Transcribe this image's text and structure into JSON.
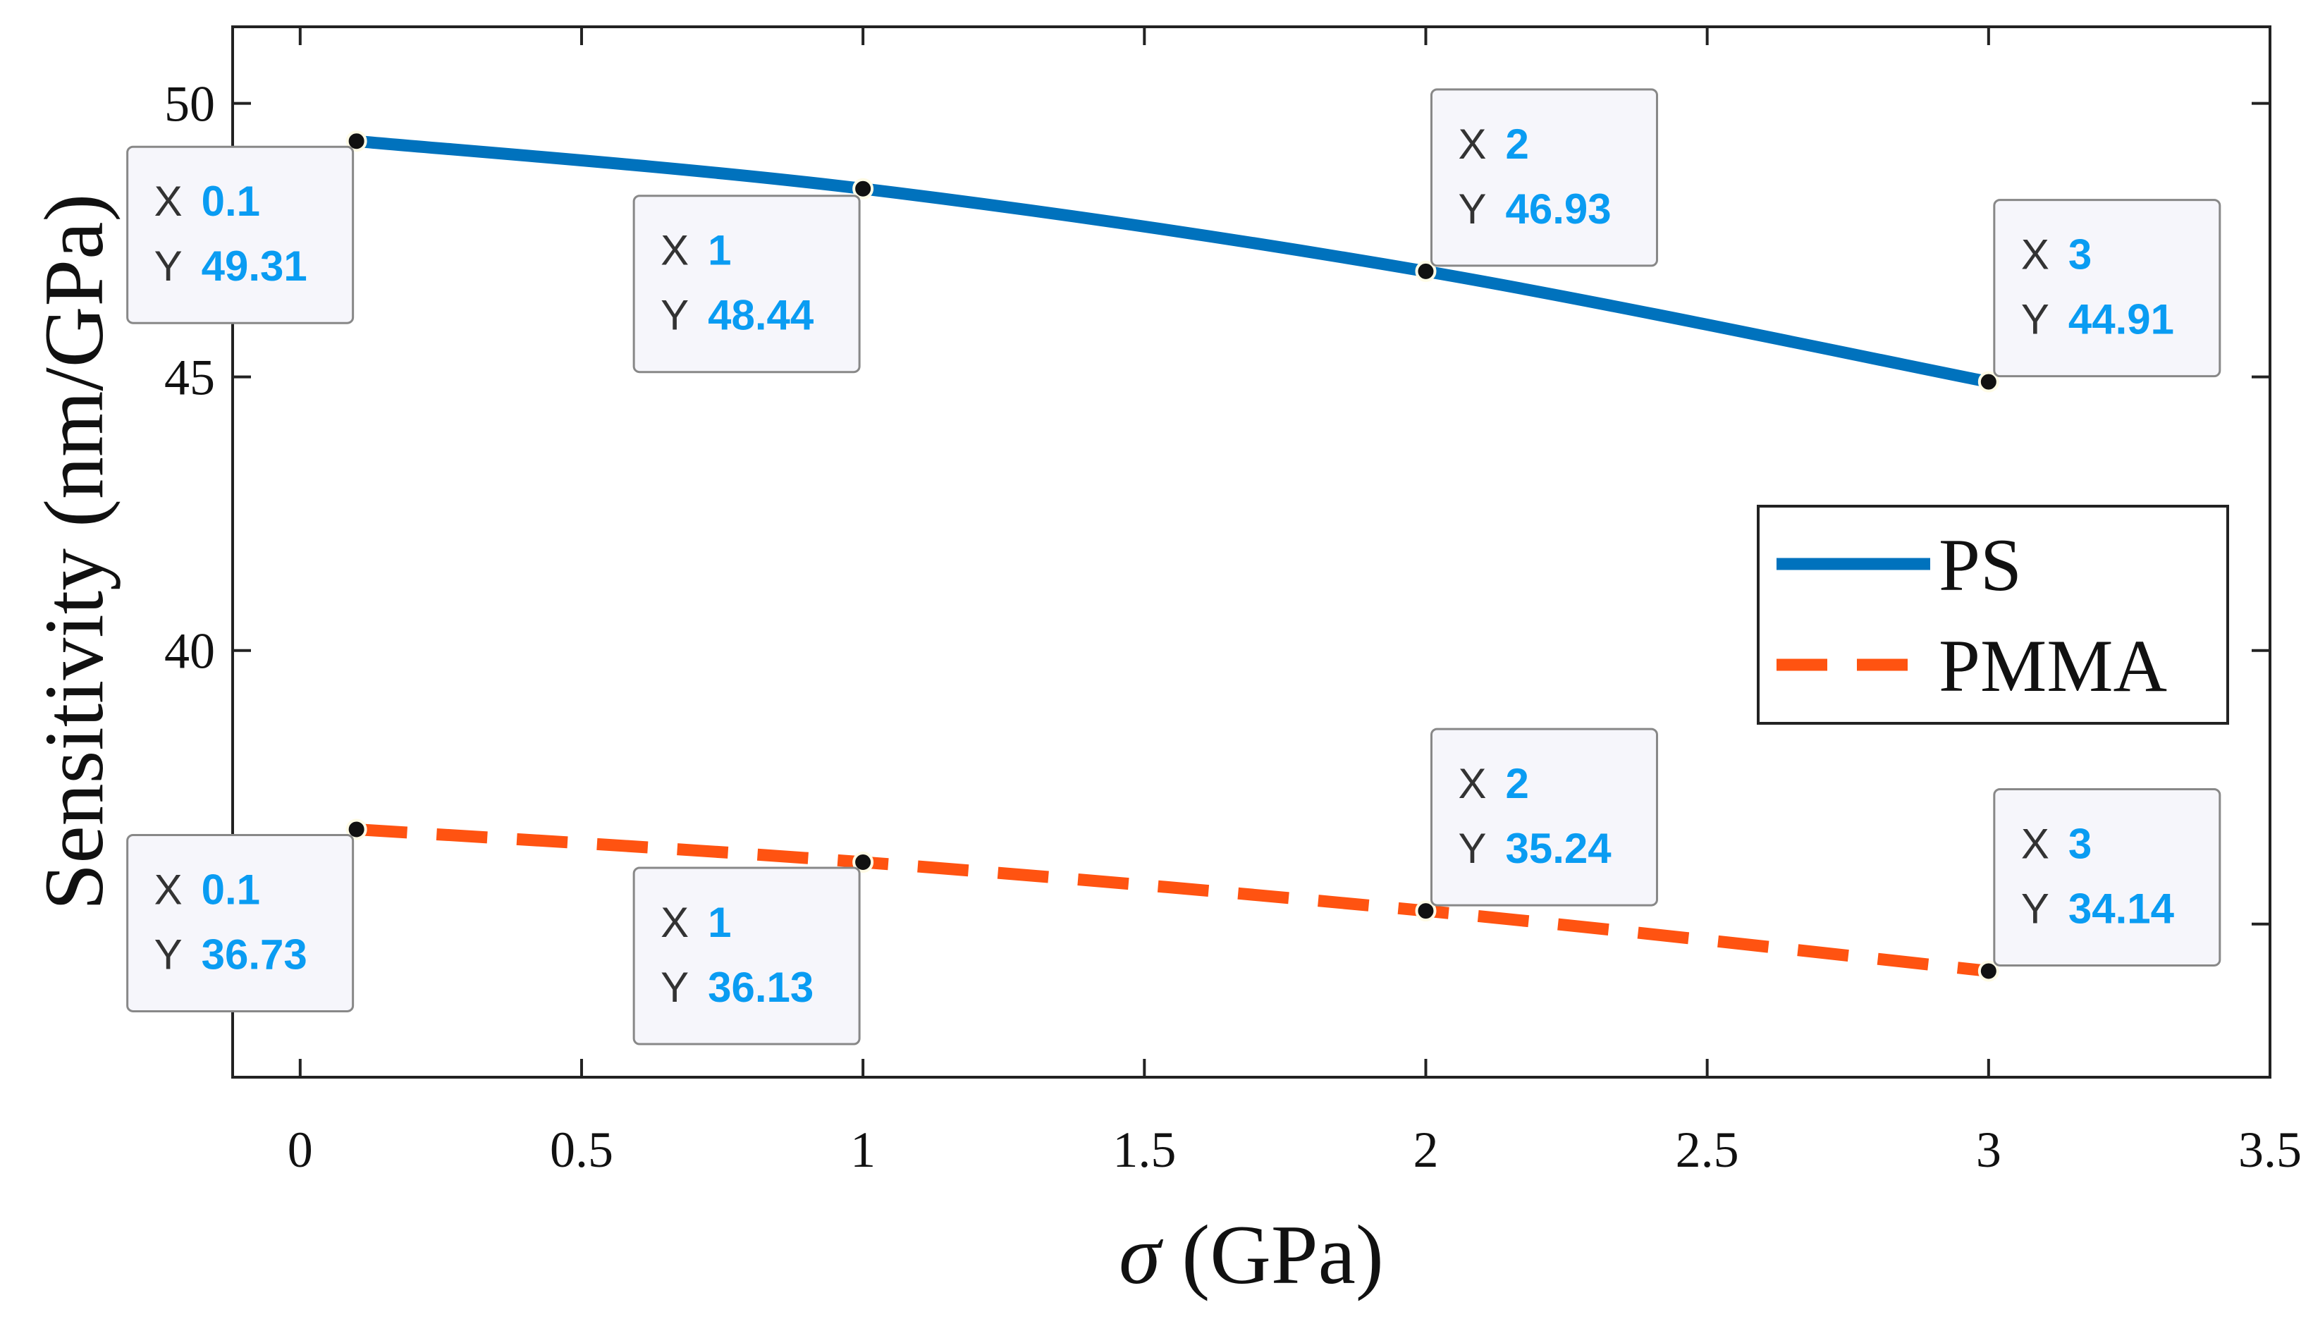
{
  "chart_data": {
    "type": "line",
    "title": "",
    "xlabel_symbol": "σ",
    "xlabel_unit": " (GPa)",
    "ylabel": "Sensitivity (nm/GPa)",
    "xlim": [
      -0.12,
      3.5
    ],
    "ylim": [
      32.2,
      51.4
    ],
    "x_ticks": [
      "0",
      "0.5",
      "1",
      "1.5",
      "2",
      "2.5",
      "3",
      "3.5"
    ],
    "y_ticks": [
      "40",
      "45",
      "50"
    ],
    "grid": false,
    "legend_position": "right",
    "colors": {
      "PS": "#0072BD",
      "PMMA": "#FF5311",
      "tip_value": "#0a9cf2",
      "marker": "#111111"
    },
    "series": [
      {
        "name": "PS",
        "style": "solid",
        "x": [
          0.1,
          1,
          2,
          3
        ],
        "y": [
          49.31,
          48.44,
          46.93,
          44.91
        ],
        "tips": [
          {
            "x_label": "X",
            "x_value": "0.1",
            "y_label": "Y",
            "y_value": "49.31"
          },
          {
            "x_label": "X",
            "x_value": "1",
            "y_label": "Y",
            "y_value": "48.44"
          },
          {
            "x_label": "X",
            "x_value": "2",
            "y_label": "Y",
            "y_value": "46.93"
          },
          {
            "x_label": "X",
            "x_value": "3",
            "y_label": "Y",
            "y_value": "44.91"
          }
        ]
      },
      {
        "name": "PMMA",
        "style": "dashed",
        "x": [
          0.1,
          1,
          2,
          3
        ],
        "y": [
          36.73,
          36.13,
          35.24,
          34.14
        ],
        "tips": [
          {
            "x_label": "X",
            "x_value": "0.1",
            "y_label": "Y",
            "y_value": "36.73"
          },
          {
            "x_label": "X",
            "x_value": "1",
            "y_label": "Y",
            "y_value": "36.13"
          },
          {
            "x_label": "X",
            "x_value": "2",
            "y_label": "Y",
            "y_value": "35.24"
          },
          {
            "x_label": "X",
            "x_value": "3",
            "y_label": "Y",
            "y_value": "34.14"
          }
        ]
      }
    ]
  }
}
